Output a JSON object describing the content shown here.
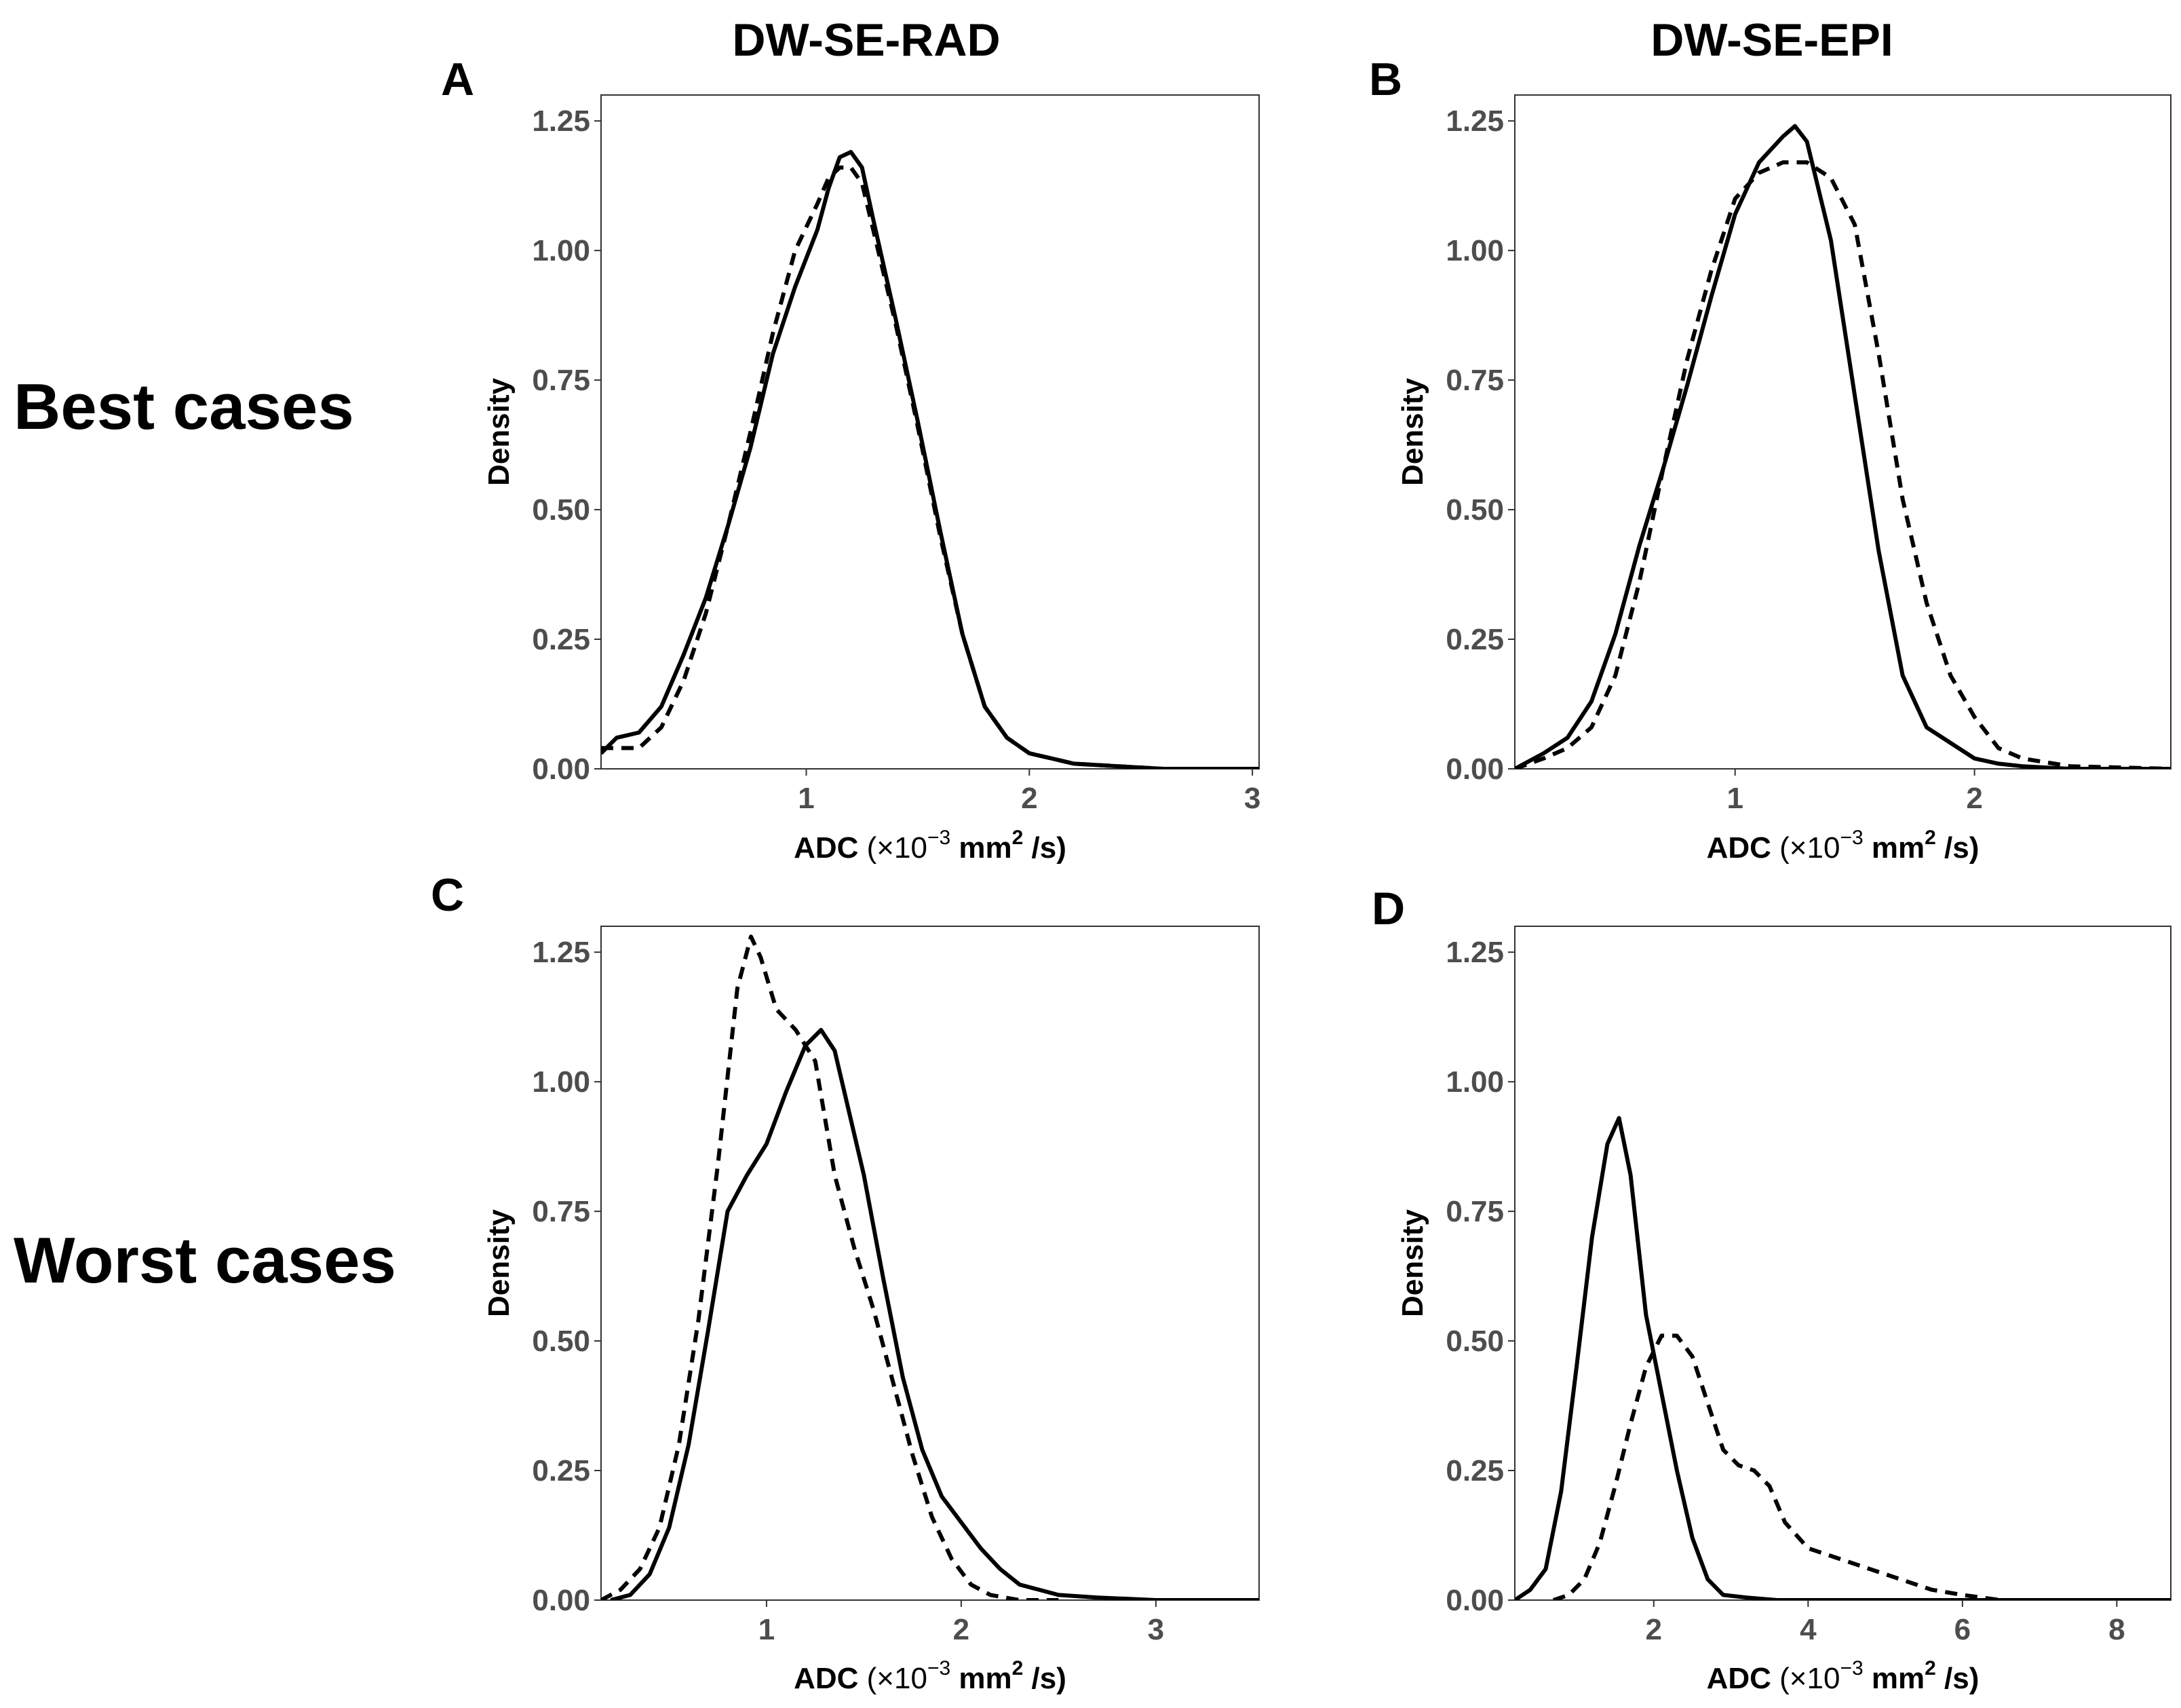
{
  "figure": {
    "column_titles": [
      "DW-SE-RAD",
      "DW-SE-EPI"
    ],
    "row_titles": [
      "Best cases",
      "Worst cases"
    ]
  },
  "styles": {
    "line_color": "#000000",
    "tick_color": "#4d4d4d"
  },
  "chart_data": [
    {
      "panel": "A",
      "type": "line",
      "title": "",
      "xlabel": {
        "main": "ADC",
        "unit_prefix": "(×10",
        "unit_exp": "−3",
        "unit_mid": " mm",
        "unit_exp2": "2",
        "unit_suffix": " /s)"
      },
      "ylabel": "Density",
      "xlim": [
        0.08,
        3.03
      ],
      "ylim": [
        0,
        1.3
      ],
      "xticks": [
        1,
        2,
        3
      ],
      "xtick_labels": [
        "1",
        "2",
        "3"
      ],
      "yticks": [
        0,
        0.25,
        0.5,
        0.75,
        1.0,
        1.25
      ],
      "ytick_labels": [
        "0.00",
        "0.25",
        "0.50",
        "0.75",
        "1.00",
        "1.25"
      ],
      "series": [
        {
          "name": "solid",
          "style": "solid",
          "x": [
            0.08,
            0.15,
            0.25,
            0.35,
            0.45,
            0.55,
            0.65,
            0.75,
            0.85,
            0.95,
            1.05,
            1.1,
            1.15,
            1.2,
            1.25,
            1.3,
            1.4,
            1.5,
            1.6,
            1.7,
            1.8,
            1.9,
            2.0,
            2.1,
            2.2,
            2.4,
            2.6,
            3.03
          ],
          "y": [
            0.03,
            0.06,
            0.07,
            0.12,
            0.22,
            0.33,
            0.47,
            0.62,
            0.8,
            0.93,
            1.04,
            1.12,
            1.18,
            1.19,
            1.16,
            1.06,
            0.87,
            0.67,
            0.46,
            0.26,
            0.12,
            0.06,
            0.03,
            0.02,
            0.01,
            0.005,
            0.0,
            0.0
          ]
        },
        {
          "name": "dashed",
          "style": "dashed",
          "x": [
            0.08,
            0.15,
            0.25,
            0.35,
            0.45,
            0.55,
            0.65,
            0.75,
            0.85,
            0.95,
            1.05,
            1.1,
            1.15,
            1.2,
            1.25,
            1.3,
            1.4,
            1.5,
            1.6,
            1.7,
            1.8,
            1.9,
            2.0,
            2.1,
            2.2,
            2.4,
            2.6,
            3.03
          ],
          "y": [
            0.04,
            0.04,
            0.04,
            0.08,
            0.17,
            0.3,
            0.47,
            0.65,
            0.84,
            1.0,
            1.09,
            1.14,
            1.16,
            1.16,
            1.13,
            1.04,
            0.86,
            0.66,
            0.45,
            0.26,
            0.12,
            0.06,
            0.03,
            0.02,
            0.01,
            0.005,
            0.0,
            0.0
          ]
        }
      ]
    },
    {
      "panel": "B",
      "type": "line",
      "title": "",
      "xlabel": {
        "main": "ADC",
        "unit_prefix": "(×10",
        "unit_exp": "−3",
        "unit_mid": " mm",
        "unit_exp2": "2",
        "unit_suffix": " /s)"
      },
      "ylabel": "Density",
      "xlim": [
        0.08,
        2.82
      ],
      "ylim": [
        0,
        1.3
      ],
      "xticks": [
        1,
        2
      ],
      "xtick_labels": [
        "1",
        "2"
      ],
      "yticks": [
        0,
        0.25,
        0.5,
        0.75,
        1.0,
        1.25
      ],
      "ytick_labels": [
        "0.00",
        "0.25",
        "0.50",
        "0.75",
        "1.00",
        "1.25"
      ],
      "series": [
        {
          "name": "solid",
          "style": "solid",
          "x": [
            0.08,
            0.2,
            0.3,
            0.4,
            0.5,
            0.6,
            0.7,
            0.8,
            0.9,
            1.0,
            1.1,
            1.2,
            1.25,
            1.3,
            1.4,
            1.5,
            1.6,
            1.7,
            1.8,
            1.9,
            2.0,
            2.1,
            2.2,
            2.4,
            2.82
          ],
          "y": [
            0.0,
            0.03,
            0.06,
            0.13,
            0.26,
            0.43,
            0.58,
            0.74,
            0.91,
            1.07,
            1.17,
            1.22,
            1.24,
            1.21,
            1.02,
            0.72,
            0.42,
            0.18,
            0.08,
            0.05,
            0.02,
            0.01,
            0.005,
            0.0,
            0.0
          ]
        },
        {
          "name": "dashed",
          "style": "dashed",
          "x": [
            0.08,
            0.2,
            0.3,
            0.4,
            0.5,
            0.6,
            0.7,
            0.8,
            0.9,
            1.0,
            1.1,
            1.2,
            1.3,
            1.4,
            1.5,
            1.6,
            1.7,
            1.8,
            1.9,
            2.0,
            2.1,
            2.2,
            2.4,
            2.82
          ],
          "y": [
            0.0,
            0.02,
            0.04,
            0.08,
            0.18,
            0.36,
            0.58,
            0.79,
            0.96,
            1.1,
            1.15,
            1.17,
            1.17,
            1.14,
            1.05,
            0.8,
            0.52,
            0.32,
            0.18,
            0.1,
            0.04,
            0.02,
            0.005,
            0.0
          ]
        }
      ]
    },
    {
      "panel": "C",
      "type": "line",
      "title": "",
      "xlabel": {
        "main": "ADC",
        "unit_prefix": "(×10",
        "unit_exp": "−3",
        "unit_mid": " mm",
        "unit_exp2": "2",
        "unit_suffix": " /s)"
      },
      "ylabel": "Density",
      "xlim": [
        0.15,
        3.53
      ],
      "ylim": [
        0,
        1.3
      ],
      "xticks": [
        1,
        2,
        3
      ],
      "xtick_labels": [
        "1",
        "2",
        "3"
      ],
      "yticks": [
        0,
        0.25,
        0.5,
        0.75,
        1.0,
        1.25
      ],
      "ytick_labels": [
        "0.00",
        "0.25",
        "0.50",
        "0.75",
        "1.00",
        "1.25"
      ],
      "series": [
        {
          "name": "solid",
          "style": "solid",
          "x": [
            0.2,
            0.3,
            0.4,
            0.5,
            0.6,
            0.7,
            0.8,
            0.9,
            1.0,
            1.1,
            1.2,
            1.28,
            1.35,
            1.5,
            1.6,
            1.7,
            1.8,
            1.9,
            2.0,
            2.1,
            2.2,
            2.3,
            2.5,
            2.7,
            3.0,
            3.53
          ],
          "y": [
            0.0,
            0.01,
            0.05,
            0.14,
            0.3,
            0.52,
            0.75,
            0.82,
            0.88,
            0.98,
            1.07,
            1.1,
            1.06,
            0.82,
            0.62,
            0.43,
            0.29,
            0.2,
            0.15,
            0.1,
            0.06,
            0.03,
            0.01,
            0.005,
            0.0,
            0.0
          ]
        },
        {
          "name": "dashed",
          "style": "dashed",
          "x": [
            0.15,
            0.25,
            0.35,
            0.45,
            0.55,
            0.65,
            0.75,
            0.85,
            0.92,
            0.97,
            1.05,
            1.15,
            1.25,
            1.35,
            1.45,
            1.55,
            1.65,
            1.75,
            1.85,
            1.95,
            2.05,
            2.15,
            2.3,
            2.5
          ],
          "y": [
            0.0,
            0.02,
            0.06,
            0.14,
            0.3,
            0.54,
            0.84,
            1.18,
            1.28,
            1.24,
            1.14,
            1.1,
            1.04,
            0.82,
            0.68,
            0.56,
            0.42,
            0.28,
            0.16,
            0.08,
            0.03,
            0.01,
            0.0,
            0.0
          ]
        }
      ]
    },
    {
      "panel": "D",
      "type": "line",
      "title": "",
      "xlabel": {
        "main": "ADC",
        "unit_prefix": "(×10",
        "unit_exp": "−3",
        "unit_mid": " mm",
        "unit_exp2": "2",
        "unit_suffix": " /s)"
      },
      "ylabel": "Density",
      "xlim": [
        0.2,
        8.7
      ],
      "ylim": [
        0,
        1.3
      ],
      "xticks": [
        2,
        4,
        6,
        8
      ],
      "xtick_labels": [
        "2",
        "4",
        "6",
        "8"
      ],
      "yticks": [
        0,
        0.25,
        0.5,
        0.75,
        1.0,
        1.25
      ],
      "ytick_labels": [
        "0.00",
        "0.25",
        "0.50",
        "0.75",
        "1.00",
        "1.25"
      ],
      "series": [
        {
          "name": "solid",
          "style": "solid",
          "x": [
            0.2,
            0.4,
            0.6,
            0.8,
            1.0,
            1.2,
            1.4,
            1.55,
            1.7,
            1.9,
            2.1,
            2.3,
            2.5,
            2.7,
            2.9,
            3.2,
            3.6,
            4.0,
            8.7
          ],
          "y": [
            0.0,
            0.02,
            0.06,
            0.21,
            0.45,
            0.7,
            0.88,
            0.93,
            0.82,
            0.55,
            0.4,
            0.25,
            0.12,
            0.04,
            0.01,
            0.005,
            0.0,
            0.0,
            0.0
          ]
        },
        {
          "name": "dashed",
          "style": "dashed",
          "x": [
            0.7,
            0.9,
            1.1,
            1.3,
            1.5,
            1.7,
            1.9,
            2.1,
            2.3,
            2.5,
            2.7,
            2.9,
            3.1,
            3.3,
            3.5,
            3.7,
            4.0,
            4.4,
            4.8,
            5.2,
            5.6,
            6.0,
            6.5,
            8.7
          ],
          "y": [
            0.0,
            0.01,
            0.04,
            0.11,
            0.22,
            0.34,
            0.45,
            0.51,
            0.51,
            0.47,
            0.38,
            0.29,
            0.26,
            0.25,
            0.22,
            0.15,
            0.1,
            0.08,
            0.06,
            0.04,
            0.02,
            0.01,
            0.0,
            0.0
          ]
        }
      ]
    }
  ]
}
